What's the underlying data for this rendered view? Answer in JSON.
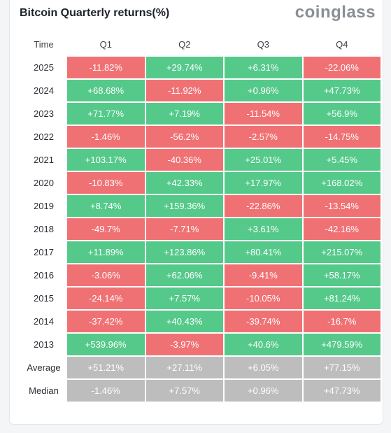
{
  "title": "Bitcoin Quarterly returns(%)",
  "brand": "coinglass",
  "colors": {
    "positive": "#55c98a",
    "negative": "#f07174",
    "summary": "#bdbdbd"
  },
  "table": {
    "headers": [
      "Time",
      "Q1",
      "Q2",
      "Q3",
      "Q4"
    ],
    "rows": [
      {
        "label": "2025",
        "values": [
          "-11.82%",
          "+29.74%",
          "+6.31%",
          "-22.06%"
        ]
      },
      {
        "label": "2024",
        "values": [
          "+68.68%",
          "-11.92%",
          "+0.96%",
          "+47.73%"
        ]
      },
      {
        "label": "2023",
        "values": [
          "+71.77%",
          "+7.19%",
          "-11.54%",
          "+56.9%"
        ]
      },
      {
        "label": "2022",
        "values": [
          "-1.46%",
          "-56.2%",
          "-2.57%",
          "-14.75%"
        ]
      },
      {
        "label": "2021",
        "values": [
          "+103.17%",
          "-40.36%",
          "+25.01%",
          "+5.45%"
        ]
      },
      {
        "label": "2020",
        "values": [
          "-10.83%",
          "+42.33%",
          "+17.97%",
          "+168.02%"
        ]
      },
      {
        "label": "2019",
        "values": [
          "+8.74%",
          "+159.36%",
          "-22.86%",
          "-13.54%"
        ]
      },
      {
        "label": "2018",
        "values": [
          "-49.7%",
          "-7.71%",
          "+3.61%",
          "-42.16%"
        ]
      },
      {
        "label": "2017",
        "values": [
          "+11.89%",
          "+123.86%",
          "+80.41%",
          "+215.07%"
        ]
      },
      {
        "label": "2016",
        "values": [
          "-3.06%",
          "+62.06%",
          "-9.41%",
          "+58.17%"
        ]
      },
      {
        "label": "2015",
        "values": [
          "-24.14%",
          "+7.57%",
          "-10.05%",
          "+81.24%"
        ]
      },
      {
        "label": "2014",
        "values": [
          "-37.42%",
          "+40.43%",
          "-39.74%",
          "-16.7%"
        ]
      },
      {
        "label": "2013",
        "values": [
          "+539.96%",
          "-3.97%",
          "+40.6%",
          "+479.59%"
        ]
      },
      {
        "label": "Average",
        "summary": true,
        "values": [
          "+51.21%",
          "+27.11%",
          "+6.05%",
          "+77.15%"
        ]
      },
      {
        "label": "Median",
        "summary": true,
        "values": [
          "-1.46%",
          "+7.57%",
          "+0.96%",
          "+47.73%"
        ]
      }
    ]
  }
}
